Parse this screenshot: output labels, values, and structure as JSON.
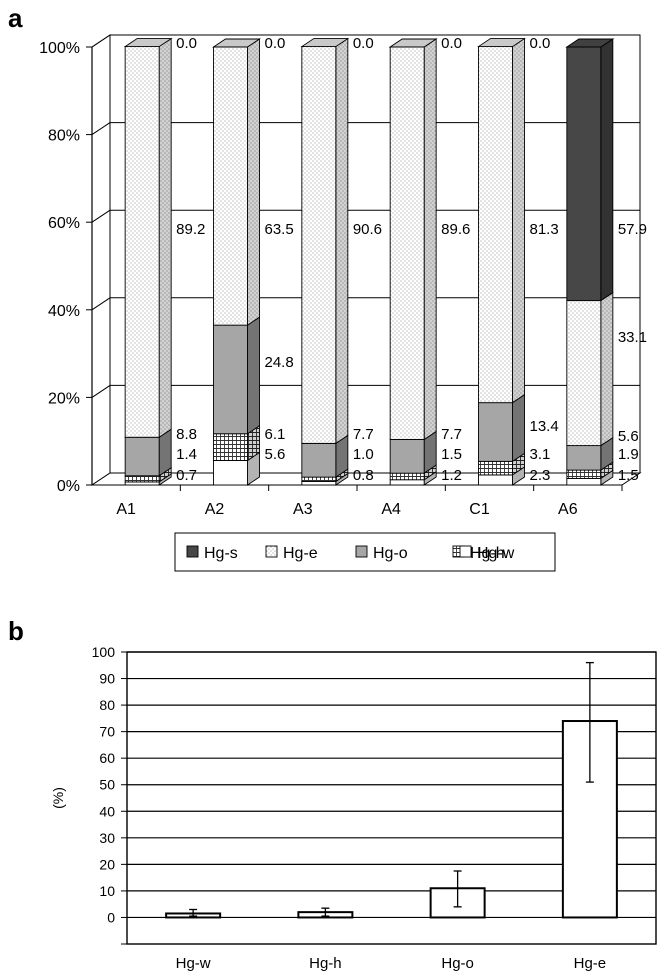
{
  "chart_data": [
    {
      "panel": "a",
      "type": "bar",
      "stacked": true,
      "three_d": true,
      "categories": [
        "A1",
        "A2",
        "A3",
        "A4",
        "C1",
        "A6"
      ],
      "y_ticks": [
        "0%",
        "20%",
        "40%",
        "60%",
        "80%",
        "100%"
      ],
      "ylim": [
        0,
        100
      ],
      "grid": true,
      "legend_position": "bottom",
      "series": [
        {
          "name": "Hg-w",
          "values": [
            0.7,
            5.6,
            0.8,
            1.2,
            2.3,
            1.5
          ],
          "labels": [
            "0.7",
            "5.6",
            "0.8",
            "1.2",
            "2.3",
            "1.5"
          ],
          "color": "#ffffff",
          "pattern": "none"
        },
        {
          "name": "Hg-h",
          "values": [
            1.4,
            6.1,
            1.0,
            1.5,
            3.1,
            1.9
          ],
          "labels": [
            "1.4",
            "6.1",
            "1.0",
            "1.5",
            "3.1",
            "1.9"
          ],
          "color": "#ffffff",
          "pattern": "grid"
        },
        {
          "name": "Hg-o",
          "values": [
            8.8,
            24.8,
            7.7,
            7.7,
            13.4,
            5.6
          ],
          "labels": [
            "8.8",
            "24.8",
            "7.7",
            "7.7",
            "13.4",
            "5.6"
          ],
          "color": "#a6a6a6",
          "pattern": "none"
        },
        {
          "name": "Hg-e",
          "values": [
            89.2,
            63.5,
            90.6,
            89.6,
            81.3,
            33.1
          ],
          "labels": [
            "89.2",
            "63.5",
            "90.6",
            "89.6",
            "81.3",
            "33.1"
          ],
          "color": "#ececec",
          "pattern": "dots"
        },
        {
          "name": "Hg-s",
          "values": [
            0.0,
            0.0,
            0.0,
            0.0,
            0.0,
            57.9
          ],
          "labels": [
            "0.0",
            "0.0",
            "0.0",
            "0.0",
            "0.0",
            "57.9"
          ],
          "color": "#474747",
          "pattern": "none"
        }
      ],
      "legend_order": [
        "Hg-s",
        "Hg-e",
        "Hg-o",
        "Hg-h",
        "Hg-w"
      ]
    },
    {
      "panel": "b",
      "type": "bar",
      "categories": [
        "Hg-w",
        "Hg-h",
        "Hg-o",
        "Hg-e"
      ],
      "values": [
        1.5,
        2,
        11,
        74
      ],
      "error_low": [
        0.5,
        0.5,
        4,
        51
      ],
      "error_high": [
        3,
        3.5,
        17.5,
        96
      ],
      "ylabel": "(%)",
      "y_ticks": [
        "0",
        "10",
        "20",
        "30",
        "40",
        "50",
        "60",
        "70",
        "80",
        "90",
        "100"
      ],
      "ylim": [
        -10,
        100
      ],
      "grid": true
    }
  ]
}
